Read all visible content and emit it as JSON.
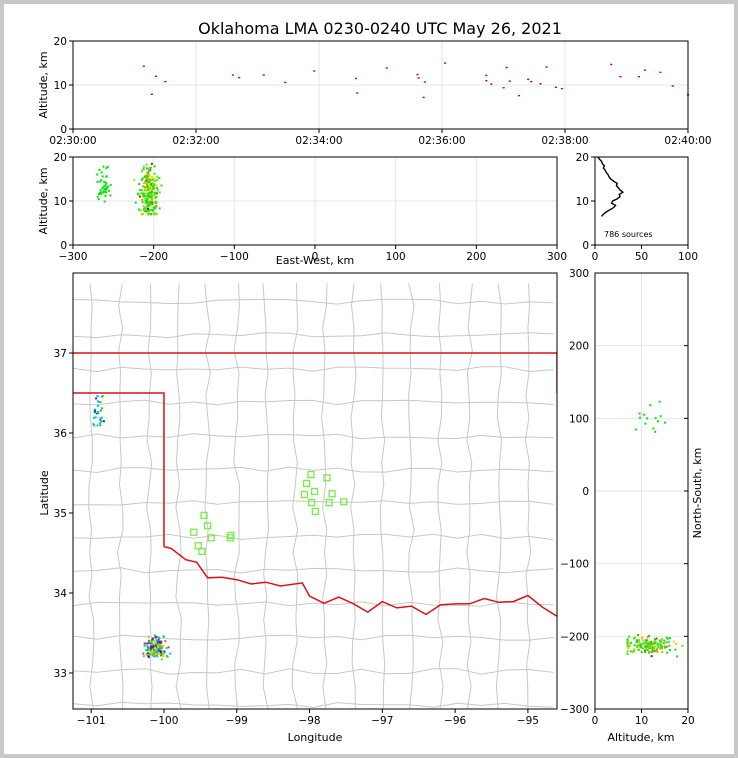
{
  "chart_data": [
    {
      "id": "time_panel",
      "type": "scatter",
      "title": "Oklahoma LMA 0230-0240 UTC May 26, 2021",
      "xlabel": "",
      "ylabel": "Altitude, km",
      "x_ticks": [
        "02:30:00",
        "02:32:00",
        "02:34:00",
        "02:36:00",
        "02:38:00",
        "02:40:00"
      ],
      "x_tick_minutes": [
        0,
        2,
        4,
        6,
        8,
        10
      ],
      "xlim_minutes": [
        0,
        10
      ],
      "ylim": [
        0,
        20
      ],
      "y_ticks": [
        0,
        10,
        20
      ],
      "grid": true,
      "points_minutes_alt": [
        [
          1.15,
          14.3
        ],
        [
          1.28,
          7.9
        ],
        [
          1.35,
          12.0
        ],
        [
          1.5,
          10.8
        ],
        [
          2.6,
          12.3
        ],
        [
          2.7,
          11.7
        ],
        [
          3.1,
          12.3
        ],
        [
          3.45,
          10.6
        ],
        [
          3.92,
          13.2
        ],
        [
          4.6,
          11.5
        ],
        [
          4.62,
          8.2
        ],
        [
          5.1,
          13.9
        ],
        [
          5.6,
          12.4
        ],
        [
          5.62,
          11.6
        ],
        [
          5.72,
          10.7
        ],
        [
          5.7,
          7.2
        ],
        [
          6.05,
          15.0
        ],
        [
          6.72,
          12.2
        ],
        [
          6.8,
          10.2
        ],
        [
          6.72,
          11.0
        ],
        [
          7.0,
          9.4
        ],
        [
          7.05,
          14.0
        ],
        [
          7.1,
          10.9
        ],
        [
          7.25,
          7.6
        ],
        [
          7.4,
          11.3
        ],
        [
          7.45,
          10.8
        ],
        [
          7.6,
          10.3
        ],
        [
          7.7,
          14.1
        ],
        [
          7.85,
          9.5
        ],
        [
          7.95,
          9.2
        ],
        [
          8.75,
          14.7
        ],
        [
          8.9,
          11.9
        ],
        [
          9.2,
          11.9
        ],
        [
          9.3,
          13.4
        ],
        [
          9.55,
          12.9
        ],
        [
          9.75,
          9.8
        ],
        [
          10.0,
          7.8
        ]
      ]
    },
    {
      "id": "ew_alt_panel",
      "type": "scatter",
      "xlabel": "East-West, km",
      "ylabel": "Altitude, km",
      "xlim": [
        -300,
        300
      ],
      "x_ticks": [
        -300,
        -200,
        -100,
        0,
        100,
        200,
        300
      ],
      "x_tick_labels": [
        "−300",
        "−200",
        "−100",
        "0",
        "100",
        "200",
        "300"
      ],
      "ylim": [
        0,
        20
      ],
      "y_ticks": [
        0,
        10,
        20
      ],
      "grid": true
    },
    {
      "id": "alt_histogram",
      "type": "line",
      "xlim": [
        0,
        100
      ],
      "x_ticks": [
        0,
        50,
        100
      ],
      "ylim": [
        0,
        20
      ],
      "y_ticks": [
        0,
        10,
        20
      ],
      "annotation": "786 sources",
      "profile_count_alt": [
        [
          7,
          6.5
        ],
        [
          9,
          7.0
        ],
        [
          12,
          7.5
        ],
        [
          16,
          8.0
        ],
        [
          20,
          8.5
        ],
        [
          22,
          9.0
        ],
        [
          18,
          9.5
        ],
        [
          19,
          10.0
        ],
        [
          24,
          10.5
        ],
        [
          27,
          11.0
        ],
        [
          26,
          11.5
        ],
        [
          30,
          12.0
        ],
        [
          27,
          12.5
        ],
        [
          25,
          13.0
        ],
        [
          23,
          13.5
        ],
        [
          24,
          14.0
        ],
        [
          20,
          14.5
        ],
        [
          17,
          15.0
        ],
        [
          15,
          15.5
        ],
        [
          14,
          16.0
        ],
        [
          12,
          16.5
        ],
        [
          11,
          17.0
        ],
        [
          9,
          17.5
        ],
        [
          10,
          18.0
        ],
        [
          8,
          18.5
        ],
        [
          7,
          19.0
        ],
        [
          5,
          19.5
        ],
        [
          3,
          20.0
        ]
      ]
    },
    {
      "id": "plan_view",
      "type": "scatter",
      "xlabel": "Longitude",
      "ylabel": "Latitude",
      "xlim": [
        -101.25,
        -94.6
      ],
      "x_ticks": [
        -101,
        -100,
        -99,
        -98,
        -97,
        -96,
        -95
      ],
      "x_tick_labels": [
        "−101",
        "−100",
        "−99",
        "−98",
        "−97",
        "−96",
        "−95"
      ],
      "ylim": [
        32.55,
        38.0
      ],
      "y_ticks": [
        33,
        34,
        35,
        36,
        37
      ],
      "stations_lon_lat": [
        [
          -97.98,
          35.48
        ],
        [
          -98.04,
          35.37
        ],
        [
          -97.93,
          35.27
        ],
        [
          -98.07,
          35.23
        ],
        [
          -97.76,
          35.44
        ],
        [
          -97.69,
          35.24
        ],
        [
          -97.97,
          35.13
        ],
        [
          -97.53,
          35.14
        ],
        [
          -97.73,
          35.13
        ],
        [
          -97.92,
          35.02
        ],
        [
          -99.45,
          34.97
        ],
        [
          -99.4,
          34.84
        ],
        [
          -99.59,
          34.76
        ],
        [
          -99.35,
          34.69
        ],
        [
          -99.09,
          34.69
        ],
        [
          -99.53,
          34.59
        ],
        [
          -99.48,
          34.52
        ],
        [
          -99.08,
          34.72
        ]
      ]
    },
    {
      "id": "alt_ns_panel",
      "type": "scatter",
      "xlabel": "Altitude, km",
      "ylabel": "North-South, km",
      "xlim": [
        0,
        20
      ],
      "x_ticks": [
        0,
        10,
        20
      ],
      "ylim": [
        -300,
        300
      ],
      "y_ticks": [
        -300,
        -200,
        -100,
        0,
        100,
        200,
        300
      ],
      "y_tick_labels": [
        "−300",
        "−200",
        "−100",
        "0",
        "100",
        "200",
        "300"
      ],
      "grid": true
    }
  ]
}
